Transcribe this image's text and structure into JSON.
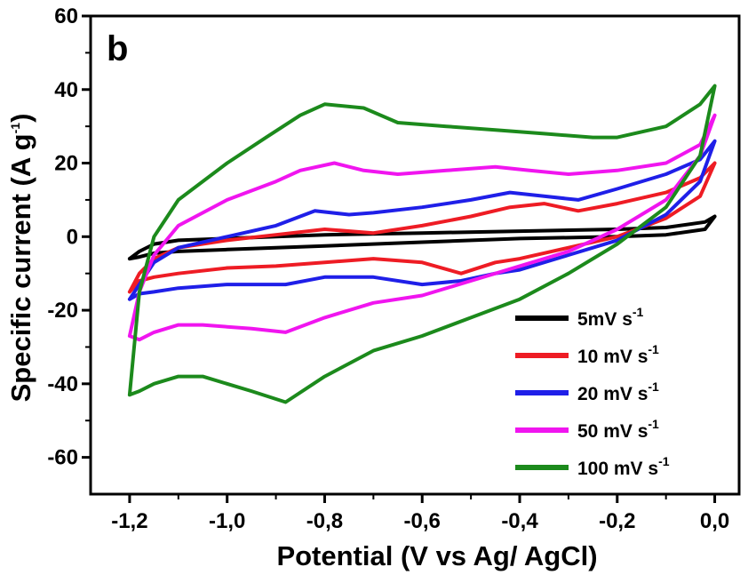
{
  "chart_data": {
    "type": "line",
    "panel_label": "b",
    "xlabel": "Potential (V vs Ag/ AgCl)",
    "ylabel": "Specific current (A g",
    "ylabel_sup": "-1",
    "ylabel_close": ")",
    "xlim": [
      -1.28,
      0.05
    ],
    "ylim": [
      -70,
      60
    ],
    "xticks": [
      -1.2,
      -1.0,
      -0.8,
      -0.6,
      -0.4,
      -0.2,
      0.0
    ],
    "xtick_labels": [
      "-1,2",
      "-1,0",
      "-0,8",
      "-0,6",
      "-0,4",
      "-0,2",
      "0,0"
    ],
    "yticks": [
      -60,
      -40,
      -20,
      0,
      20,
      40,
      60
    ],
    "ytick_labels": [
      "-60",
      "-40",
      "-20",
      "0",
      "20",
      "40",
      "60"
    ],
    "legend_position": "bottom-right",
    "series": [
      {
        "name": "5mV s",
        "name_sup": "-1",
        "color": "#000000",
        "x": [
          -1.2,
          -1.18,
          -1.15,
          -1.1,
          -1.0,
          -0.9,
          -0.8,
          -0.6,
          -0.4,
          -0.2,
          -0.1,
          -0.02,
          0.0,
          -0.02,
          -0.1,
          -0.2,
          -0.4,
          -0.6,
          -0.8,
          -0.9,
          -1.0,
          -1.1,
          -1.15,
          -1.18,
          -1.2
        ],
        "y": [
          -6,
          -4,
          -2,
          -1,
          -0.5,
          0,
          0.5,
          1,
          1.5,
          2,
          2.5,
          4,
          5.5,
          2,
          0.5,
          0,
          -0.5,
          -1.5,
          -2.5,
          -3,
          -3.5,
          -4,
          -4.5,
          -5.5,
          -6
        ]
      },
      {
        "name": "10 mV s",
        "name_sup": "-1",
        "color": "#ee1c24",
        "x": [
          -1.2,
          -1.18,
          -1.15,
          -1.1,
          -1.0,
          -0.9,
          -0.8,
          -0.7,
          -0.6,
          -0.5,
          -0.42,
          -0.35,
          -0.28,
          -0.2,
          -0.1,
          -0.03,
          0.0,
          -0.03,
          -0.1,
          -0.2,
          -0.3,
          -0.4,
          -0.45,
          -0.52,
          -0.6,
          -0.7,
          -0.8,
          -0.9,
          -1.0,
          -1.1,
          -1.15,
          -1.18,
          -1.2
        ],
        "y": [
          -15,
          -10,
          -6,
          -3,
          -1,
          0.5,
          2,
          1,
          3,
          5.5,
          8,
          9,
          7,
          9,
          12,
          16,
          20,
          11,
          5,
          0,
          -3,
          -6,
          -7,
          -10,
          -7,
          -6,
          -7,
          -8,
          -8.5,
          -10,
          -11,
          -12,
          -15
        ]
      },
      {
        "name": "20 mV s",
        "name_sup": "-1",
        "color": "#1f1fe8",
        "x": [
          -1.2,
          -1.18,
          -1.15,
          -1.1,
          -1.0,
          -0.9,
          -0.82,
          -0.75,
          -0.7,
          -0.6,
          -0.5,
          -0.42,
          -0.35,
          -0.28,
          -0.2,
          -0.1,
          -0.03,
          0.0,
          -0.03,
          -0.1,
          -0.2,
          -0.3,
          -0.4,
          -0.45,
          -0.52,
          -0.6,
          -0.7,
          -0.8,
          -0.88,
          -1.0,
          -1.1,
          -1.15,
          -1.18,
          -1.2
        ],
        "y": [
          -17,
          -13,
          -7,
          -3,
          0,
          3,
          7,
          6,
          6.5,
          8,
          10,
          12,
          11,
          10,
          13,
          17,
          21,
          26,
          15,
          6,
          -1,
          -5,
          -9,
          -10,
          -12,
          -13,
          -11,
          -11,
          -13,
          -13,
          -14,
          -15,
          -15.5,
          -17
        ]
      },
      {
        "name": "50 mV s",
        "name_sup": "-1",
        "color": "#f015ef",
        "x": [
          -1.2,
          -1.18,
          -1.15,
          -1.1,
          -1.0,
          -0.9,
          -0.85,
          -0.78,
          -0.72,
          -0.65,
          -0.55,
          -0.45,
          -0.38,
          -0.3,
          -0.2,
          -0.1,
          -0.03,
          0.0,
          -0.03,
          -0.1,
          -0.2,
          -0.3,
          -0.4,
          -0.5,
          -0.6,
          -0.7,
          -0.8,
          -0.88,
          -0.95,
          -1.05,
          -1.1,
          -1.15,
          -1.18,
          -1.2
        ],
        "y": [
          -27,
          -15,
          -5,
          3,
          10,
          15,
          18,
          20,
          18,
          17,
          18,
          19,
          18,
          17,
          18,
          20,
          25,
          33,
          22,
          10,
          2,
          -4,
          -8,
          -12,
          -16,
          -18,
          -22,
          -26,
          -25,
          -24,
          -24,
          -26,
          -28,
          -27
        ]
      },
      {
        "name": "100 mV s",
        "name_sup": "-1",
        "color": "#1c8a1c",
        "x": [
          -1.2,
          -1.18,
          -1.15,
          -1.1,
          -1.0,
          -0.92,
          -0.85,
          -0.8,
          -0.72,
          -0.65,
          -0.55,
          -0.45,
          -0.35,
          -0.25,
          -0.2,
          -0.1,
          -0.03,
          0.0,
          -0.03,
          -0.1,
          -0.2,
          -0.3,
          -0.4,
          -0.5,
          -0.6,
          -0.7,
          -0.8,
          -0.88,
          -0.95,
          -1.05,
          -1.1,
          -1.15,
          -1.18,
          -1.2
        ],
        "y": [
          -43,
          -15,
          0,
          10,
          20,
          27,
          33,
          36,
          35,
          31,
          30,
          29,
          28,
          27,
          27,
          30,
          36,
          41,
          22,
          8,
          -2,
          -10,
          -17,
          -22,
          -27,
          -31,
          -38,
          -45,
          -42,
          -38,
          -38,
          -40,
          -42,
          -43
        ]
      }
    ]
  }
}
